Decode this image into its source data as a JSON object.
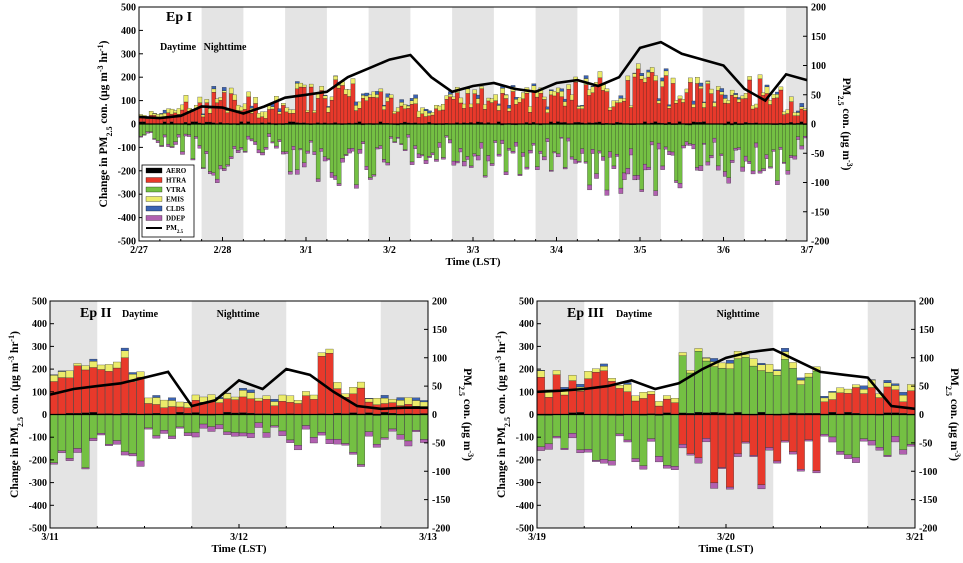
{
  "colors": {
    "AERO": "#000000",
    "HTRA": "#e8392b",
    "VTRA": "#74c043",
    "EMIS": "#ecec6a",
    "CLDS": "#3b63b3",
    "DDEP": "#b160b0",
    "PM25": "#000000",
    "night_shade": "#e4e4e4"
  },
  "legend": [
    "AERO",
    "HTRA",
    "VTRA",
    "EMIS",
    "CLDS",
    "DDEP"
  ],
  "legend_pm": "PM",
  "legend_pm_sub": "2.5",
  "axis_text": {
    "ylabel_left": "Change in PM",
    "ylabel_left_sub": "2.5",
    "ylabel_left_tail": " con. (μg m",
    "ylabel_left_sup1": "-3",
    "ylabel_left_mid": " hr",
    "ylabel_left_sup2": "-1",
    "ylabel_left_end": ")",
    "ylabel_right": "PM",
    "ylabel_right_sub": "2.5",
    "ylabel_right_tail": " con. (μg m",
    "ylabel_right_sup": "-3",
    "ylabel_right_end": ")",
    "xlabel": "Time (LST)"
  },
  "chart_data": [
    {
      "id": "ep1",
      "type": "bar",
      "title": "Ep I",
      "day_label": "Daytime",
      "night_label": "Nighttime",
      "xlabel": "Time (LST)",
      "x_ticks": [
        "2/27",
        "2/28",
        "3/1",
        "3/2",
        "3/3",
        "3/4",
        "3/5",
        "3/6",
        "3/7"
      ],
      "y_left_range": [
        -500,
        500
      ],
      "y_left_ticks": [
        500,
        400,
        300,
        200,
        100,
        0,
        -100,
        -200,
        -300,
        -400,
        -500
      ],
      "y_right_range": [
        -200,
        200
      ],
      "y_right_ticks": [
        200,
        150,
        100,
        50,
        0,
        -50,
        -100,
        -150,
        -200
      ],
      "night_bands_hours": [
        [
          18,
          30
        ],
        [
          42,
          54
        ],
        [
          66,
          78
        ],
        [
          90,
          102
        ],
        [
          114,
          126
        ],
        [
          138,
          150
        ],
        [
          162,
          174
        ],
        [
          186,
          192
        ]
      ],
      "series_totals": {
        "x_hours": [
          0,
          12,
          24,
          36,
          48,
          60,
          72,
          84,
          96,
          108,
          120,
          132,
          144,
          156,
          168,
          180,
          192
        ],
        "HTRA": [
          20,
          60,
          120,
          60,
          130,
          150,
          90,
          80,
          120,
          110,
          100,
          180,
          200,
          150,
          130,
          160,
          70
        ],
        "VTRA": [
          -40,
          -120,
          -200,
          -100,
          -200,
          -220,
          -150,
          -140,
          -190,
          -170,
          -150,
          -220,
          -240,
          -200,
          -190,
          -230,
          -120
        ],
        "EMIS": [
          10,
          20,
          15,
          20,
          15,
          20,
          15,
          20,
          15,
          20,
          15,
          20,
          15,
          20,
          15,
          20,
          10
        ],
        "DDEP": [
          -5,
          -10,
          -15,
          -10,
          -20,
          -15,
          -10,
          -15,
          -20,
          -15,
          -10,
          -20,
          -25,
          -15,
          -20,
          -15,
          -10
        ]
      },
      "pm25": {
        "x_hours": [
          0,
          6,
          12,
          18,
          24,
          30,
          36,
          42,
          48,
          54,
          60,
          66,
          72,
          78,
          84,
          90,
          96,
          102,
          108,
          114,
          120,
          126,
          132,
          138,
          144,
          150,
          156,
          162,
          168,
          174,
          180,
          186,
          192
        ],
        "values": [
          12,
          10,
          14,
          30,
          28,
          18,
          30,
          45,
          50,
          55,
          80,
          95,
          110,
          118,
          80,
          55,
          65,
          70,
          60,
          55,
          70,
          75,
          65,
          80,
          130,
          140,
          120,
          110,
          100,
          60,
          40,
          85,
          75
        ]
      }
    },
    {
      "id": "ep2",
      "type": "bar",
      "title": "Ep II",
      "day_label": "Daytime",
      "night_label": "Nighttime",
      "xlabel": "Time (LST)",
      "x_ticks": [
        "3/11",
        "3/12",
        "3/13"
      ],
      "y_left_range": [
        -500,
        500
      ],
      "y_left_ticks": [
        500,
        400,
        300,
        200,
        100,
        0,
        -100,
        -200,
        -300,
        -400,
        -500
      ],
      "y_right_range": [
        -200,
        200
      ],
      "y_right_ticks": [
        200,
        150,
        100,
        50,
        0,
        -50,
        -100,
        -150,
        -200
      ],
      "night_bands_hours": [
        [
          0,
          6
        ],
        [
          18,
          30
        ],
        [
          42,
          48
        ]
      ],
      "pm25": {
        "x_hours": [
          0,
          3,
          6,
          9,
          12,
          15,
          18,
          21,
          24,
          27,
          30,
          33,
          36,
          39,
          42,
          45,
          48
        ],
        "values": [
          35,
          45,
          50,
          55,
          65,
          75,
          15,
          25,
          60,
          45,
          80,
          70,
          40,
          15,
          10,
          12,
          12
        ]
      }
    },
    {
      "id": "ep3",
      "type": "bar",
      "title": "Ep III",
      "day_label": "Daytime",
      "night_label": "Nighttime",
      "xlabel": "Time (LST)",
      "x_ticks": [
        "3/19",
        "3/20",
        "3/21"
      ],
      "y_left_range": [
        -500,
        500
      ],
      "y_left_ticks": [
        500,
        400,
        300,
        200,
        100,
        0,
        -100,
        -200,
        -300,
        -400,
        -500
      ],
      "y_right_range": [
        -200,
        200
      ],
      "y_right_ticks": [
        200,
        150,
        100,
        50,
        0,
        -50,
        -100,
        -150,
        -200
      ],
      "night_bands_hours": [
        [
          0,
          6
        ],
        [
          18,
          30
        ],
        [
          42,
          48
        ]
      ],
      "pm25": {
        "x_hours": [
          0,
          3,
          6,
          9,
          12,
          15,
          18,
          21,
          24,
          27,
          30,
          33,
          36,
          39,
          42,
          45,
          48
        ],
        "values": [
          40,
          42,
          45,
          50,
          60,
          45,
          55,
          80,
          100,
          110,
          115,
          95,
          75,
          70,
          65,
          15,
          10
        ]
      }
    }
  ]
}
